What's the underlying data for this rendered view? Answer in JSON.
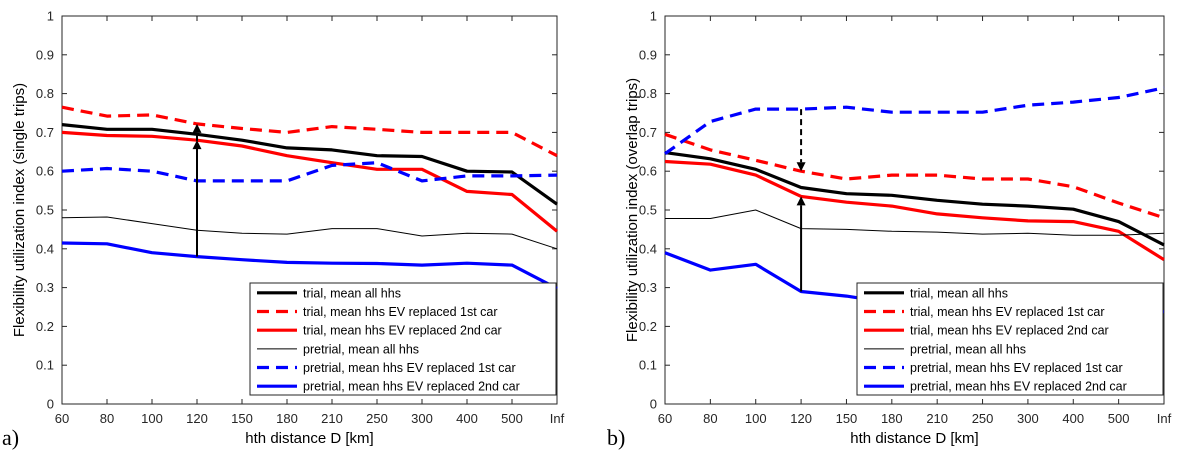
{
  "figure": {
    "panels": [
      {
        "letter": "a)",
        "ylabel": "Flexibility utilization index (single trips)",
        "xlabel": "hth distance D [km]"
      },
      {
        "letter": "b)",
        "ylabel": "Flexibility utilization index (overlap trips)",
        "xlabel": "hth distance D [km]"
      }
    ]
  },
  "chart_data": [
    {
      "type": "line",
      "categories": [
        "60",
        "80",
        "100",
        "120",
        "150",
        "180",
        "210",
        "250",
        "300",
        "400",
        "500",
        "Inf"
      ],
      "ylim": [
        0,
        1
      ],
      "yticks": [
        "0",
        "0.1",
        "0.2",
        "0.3",
        "0.4",
        "0.5",
        "0.6",
        "0.7",
        "0.8",
        "0.9",
        "1"
      ],
      "xlabel": "hth distance D [km]",
      "ylabel": "Flexibility utilization index (single trips)",
      "legend_position": "bottom-right",
      "series": [
        {
          "name": "trial, mean all hhs",
          "color": "#000000",
          "style": "solid-thick",
          "values": [
            0.72,
            0.708,
            0.708,
            0.695,
            0.68,
            0.66,
            0.655,
            0.64,
            0.638,
            0.6,
            0.598,
            0.515
          ]
        },
        {
          "name": "trial, mean hhs EV replaced 1st car",
          "color": "#ff0000",
          "style": "dashed",
          "values": [
            0.765,
            0.742,
            0.745,
            0.722,
            0.71,
            0.7,
            0.715,
            0.708,
            0.7,
            0.7,
            0.7,
            0.64
          ]
        },
        {
          "name": "trial, mean hhs EV replaced 2nd car",
          "color": "#ff0000",
          "style": "solid-thick",
          "values": [
            0.7,
            0.692,
            0.69,
            0.68,
            0.665,
            0.64,
            0.622,
            0.605,
            0.605,
            0.548,
            0.54,
            0.445
          ]
        },
        {
          "name": "pretrial, mean all hhs",
          "color": "#000000",
          "style": "solid-thin",
          "values": [
            0.48,
            0.482,
            0.465,
            0.448,
            0.44,
            0.438,
            0.452,
            0.452,
            0.433,
            0.44,
            0.438,
            0.4
          ]
        },
        {
          "name": "pretrial, mean hhs EV replaced 1st car",
          "color": "#0000ff",
          "style": "dashed",
          "values": [
            0.6,
            0.607,
            0.6,
            0.575,
            0.575,
            0.575,
            0.615,
            0.622,
            0.575,
            0.588,
            0.588,
            0.59
          ]
        },
        {
          "name": "pretrial, mean hhs EV replaced 2nd car",
          "color": "#0000ff",
          "style": "solid-thick",
          "values": [
            0.415,
            0.413,
            0.39,
            0.38,
            0.372,
            0.365,
            0.363,
            0.362,
            0.358,
            0.363,
            0.358,
            0.298
          ]
        }
      ],
      "arrows": [
        {
          "style": "solid",
          "x": "120",
          "from": 0.38,
          "to": 0.68
        },
        {
          "style": "dashed",
          "x": "120",
          "from": 0.575,
          "to": 0.722
        }
      ]
    },
    {
      "type": "line",
      "categories": [
        "60",
        "80",
        "100",
        "120",
        "150",
        "180",
        "210",
        "250",
        "300",
        "400",
        "500",
        "Inf"
      ],
      "ylim": [
        0,
        1
      ],
      "yticks": [
        "0",
        "0.1",
        "0.2",
        "0.3",
        "0.4",
        "0.5",
        "0.6",
        "0.7",
        "0.8",
        "0.9",
        "1"
      ],
      "xlabel": "hth distance D [km]",
      "ylabel": "Flexibility utilization index (overlap trips)",
      "legend_position": "bottom-right",
      "series": [
        {
          "name": "trial, mean all hhs",
          "color": "#000000",
          "style": "solid-thick",
          "values": [
            0.648,
            0.632,
            0.605,
            0.558,
            0.542,
            0.538,
            0.525,
            0.515,
            0.51,
            0.502,
            0.47,
            0.41
          ]
        },
        {
          "name": "trial, mean hhs EV replaced 1st car",
          "color": "#ff0000",
          "style": "dashed",
          "values": [
            0.695,
            0.655,
            0.628,
            0.6,
            0.58,
            0.59,
            0.59,
            0.58,
            0.58,
            0.56,
            0.518,
            0.48
          ]
        },
        {
          "name": "trial, mean hhs EV replaced 2nd car",
          "color": "#ff0000",
          "style": "solid-thick",
          "values": [
            0.625,
            0.618,
            0.59,
            0.535,
            0.52,
            0.51,
            0.49,
            0.48,
            0.472,
            0.47,
            0.445,
            0.372
          ]
        },
        {
          "name": "pretrial, mean all hhs",
          "color": "#000000",
          "style": "solid-thin",
          "values": [
            0.478,
            0.478,
            0.5,
            0.452,
            0.45,
            0.445,
            0.443,
            0.438,
            0.44,
            0.435,
            0.435,
            0.44
          ]
        },
        {
          "name": "pretrial, mean hhs EV replaced 1st car",
          "color": "#0000ff",
          "style": "dashed",
          "values": [
            0.645,
            0.728,
            0.76,
            0.76,
            0.765,
            0.752,
            0.752,
            0.752,
            0.77,
            0.778,
            0.79,
            0.815
          ]
        },
        {
          "name": "pretrial, mean hhs EV replaced 2nd car",
          "color": "#0000ff",
          "style": "solid-thick",
          "values": [
            0.39,
            0.345,
            0.36,
            0.29,
            0.278,
            0.26,
            0.25,
            0.245,
            0.24,
            0.24,
            0.238,
            0.238
          ]
        }
      ],
      "arrows": [
        {
          "style": "solid",
          "x": "120",
          "from": 0.29,
          "to": 0.535
        },
        {
          "style": "dashed",
          "x": "120",
          "from": 0.76,
          "to": 0.6
        }
      ]
    }
  ]
}
